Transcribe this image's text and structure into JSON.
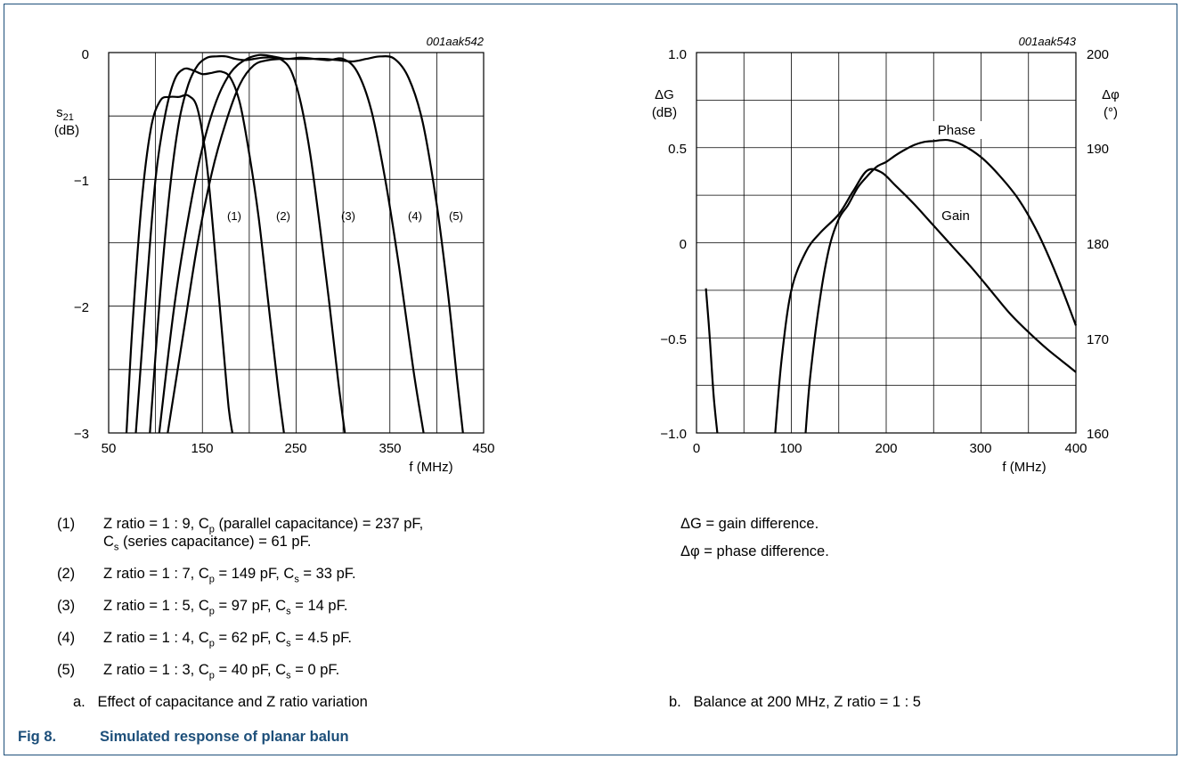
{
  "chart_data": [
    {
      "type": "line",
      "id": "001aak542",
      "ylabel": "s21",
      "yunit": "(dB)",
      "xlabel": "f (MHz)",
      "xlim": [
        50,
        450
      ],
      "ylim": [
        -3,
        0
      ],
      "xticks": [
        "50",
        "150",
        "250",
        "350",
        "450"
      ],
      "yticks": [
        "0",
        "−1",
        "−2",
        "−3"
      ],
      "grid": true,
      "series": [
        {
          "name": "(1)",
          "x": [
            69,
            75,
            85,
            95,
            105,
            115,
            125,
            135,
            145,
            155,
            165,
            172,
            178,
            182
          ],
          "y": [
            -3,
            -2.2,
            -1.2,
            -0.6,
            -0.38,
            -0.35,
            -0.35,
            -0.34,
            -0.45,
            -0.9,
            -1.7,
            -2.3,
            -2.8,
            -3
          ]
        },
        {
          "name": "(2)",
          "x": [
            79,
            90,
            100,
            110,
            120,
            130,
            140,
            150,
            160,
            170,
            180,
            190,
            200,
            210,
            220,
            230,
            237
          ],
          "y": [
            -3,
            -1.9,
            -1.0,
            -0.5,
            -0.22,
            -0.13,
            -0.14,
            -0.17,
            -0.16,
            -0.15,
            -0.2,
            -0.4,
            -0.8,
            -1.3,
            -1.95,
            -2.6,
            -3
          ]
        },
        {
          "name": "(3)",
          "x": [
            94,
            105,
            115,
            125,
            135,
            145,
            155,
            165,
            175,
            185,
            195,
            205,
            215,
            225,
            235,
            245,
            255,
            265,
            275,
            285,
            295,
            302
          ],
          "y": [
            -3,
            -1.9,
            -1.1,
            -0.55,
            -0.25,
            -0.1,
            -0.04,
            -0.03,
            -0.03,
            -0.05,
            -0.06,
            -0.05,
            -0.04,
            -0.04,
            -0.06,
            -0.15,
            -0.4,
            -0.8,
            -1.35,
            -1.95,
            -2.6,
            -3
          ]
        },
        {
          "name": "(4)",
          "x": [
            104,
            120,
            135,
            150,
            165,
            180,
            195,
            210,
            225,
            240,
            255,
            270,
            285,
            300,
            315,
            330,
            345,
            360,
            375,
            386
          ],
          "y": [
            -3,
            -2.0,
            -1.3,
            -0.75,
            -0.38,
            -0.16,
            -0.06,
            -0.02,
            -0.03,
            -0.05,
            -0.04,
            -0.05,
            -0.06,
            -0.05,
            -0.15,
            -0.45,
            -1.0,
            -1.7,
            -2.5,
            -3
          ]
        },
        {
          "name": "(5)",
          "x": [
            113,
            130,
            145,
            160,
            175,
            190,
            205,
            220,
            235,
            250,
            265,
            280,
            295,
            310,
            325,
            340,
            355,
            370,
            385,
            400,
            412,
            422,
            428
          ],
          "y": [
            -3,
            -2.2,
            -1.5,
            -0.95,
            -0.55,
            -0.25,
            -0.1,
            -0.06,
            -0.05,
            -0.05,
            -0.05,
            -0.05,
            -0.06,
            -0.07,
            -0.05,
            -0.03,
            -0.05,
            -0.2,
            -0.55,
            -1.2,
            -1.9,
            -2.6,
            -3
          ]
        }
      ]
    },
    {
      "type": "line",
      "id": "001aak543",
      "ylabel": "ΔG",
      "yunit": "(dB)",
      "y2label": "Δφ",
      "y2unit": "(°)",
      "xlabel": "f (MHz)",
      "xlim": [
        0,
        400
      ],
      "ylim": [
        -1.0,
        1.0
      ],
      "y2lim": [
        160,
        200
      ],
      "xticks": [
        "0",
        "100",
        "200",
        "300",
        "400"
      ],
      "yticks": [
        "1.0",
        "0.5",
        "0",
        "−0.5",
        "−1.0"
      ],
      "y2ticks": [
        "200",
        "190",
        "180",
        "170",
        "160"
      ],
      "grid": true,
      "series": [
        {
          "name": "Gain",
          "axis": "left",
          "x": [
            83,
            90,
            100,
            115,
            130,
            150,
            165,
            180,
            195,
            210,
            230,
            250,
            270,
            290,
            310,
            330,
            350,
            370,
            390,
            400
          ],
          "y": [
            -1.0,
            -0.6,
            -0.25,
            -0.05,
            0.05,
            0.15,
            0.27,
            0.38,
            0.37,
            0.3,
            0.2,
            0.09,
            -0.02,
            -0.13,
            -0.25,
            -0.37,
            -0.47,
            -0.56,
            -0.64,
            -0.68
          ]
        },
        {
          "name": "",
          "axis": "left",
          "x": [
            10,
            14,
            18,
            22
          ],
          "y": [
            -0.24,
            -0.5,
            -0.8,
            -1.0
          ]
        },
        {
          "name": "Phase",
          "axis": "right",
          "x": [
            115,
            120,
            130,
            140,
            150,
            160,
            170,
            180,
            190,
            200,
            210,
            220,
            230,
            240,
            250,
            265,
            280,
            300,
            320,
            340,
            360,
            380,
            400
          ],
          "y": [
            160,
            166,
            174,
            179.5,
            182.5,
            184,
            185.8,
            187,
            188,
            188.5,
            189.2,
            189.8,
            190.3,
            190.6,
            190.7,
            190.8,
            190.3,
            189,
            187,
            184.5,
            181,
            176.5,
            171.3
          ]
        }
      ]
    }
  ],
  "chart1": {
    "id": "001aak542",
    "ylabel": "s21",
    "yunit": "(dB)",
    "xlabel": "f (MHz)",
    "xticks": [
      "50",
      "150",
      "250",
      "350",
      "450"
    ],
    "yticks": [
      "0",
      "−1",
      "−2",
      "−3"
    ],
    "curve_labels": [
      "(1)",
      "(2)",
      "(3)",
      "(4)",
      "(5)"
    ]
  },
  "chart2": {
    "id": "001aak543",
    "ylabel": "ΔG",
    "yunit": "(dB)",
    "y2label": "Δφ",
    "y2unit": "(°)",
    "xlabel": "f (MHz)",
    "xticks": [
      "0",
      "100",
      "200",
      "300",
      "400"
    ],
    "yticks": [
      "1.0",
      "0.5",
      "0",
      "−0.5",
      "−1.0"
    ],
    "y2ticks": [
      "200",
      "190",
      "180",
      "170",
      "160"
    ],
    "phase_label": "Phase",
    "gain_label": "Gain"
  },
  "notes_left": {
    "n1": "(1)",
    "t1a": "Z ratio = 1 : 9, C",
    "t1b": "p",
    "t1c": " (parallel capacitance) = 237 pF,",
    "t1d": "C",
    "t1e": "s",
    "t1f": " (series capacitance) = 61 pF.",
    "n2": "(2)",
    "t2": "Z ratio = 1 : 7, C",
    "t2p": "p",
    "t2m": " = 149 pF, C",
    "t2s": "s",
    "t2e": " = 33 pF.",
    "n3": "(3)",
    "t3": "Z ratio = 1 : 5, C",
    "t3p": "p",
    "t3m": " = 97 pF, C",
    "t3s": "s",
    "t3e": " = 14 pF.",
    "n4": "(4)",
    "t4": "Z ratio = 1 : 4, C",
    "t4p": "p",
    "t4m": " = 62 pF, C",
    "t4s": "s",
    "t4e": " = 4.5 pF.",
    "n5": "(5)",
    "t5": "Z ratio = 1 : 3, C",
    "t5p": "p",
    "t5m": " = 40 pF, C",
    "t5s": "s",
    "t5e": " = 0 pF.",
    "caption": "a.   Effect of capacitance and Z ratio variation"
  },
  "notes_right": {
    "dg": "ΔG = gain difference.",
    "dphi": "Δφ = phase difference.",
    "caption": "b.   Balance at 200 MHz, Z ratio = 1 : 5"
  },
  "figure": {
    "number": "Fig 8.",
    "title": "Simulated response of planar balun"
  }
}
